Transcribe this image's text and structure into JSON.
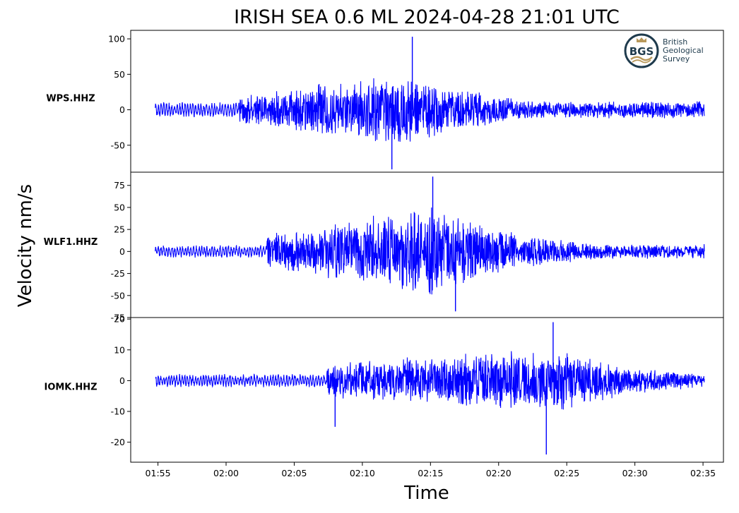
{
  "chart_data": {
    "type": "line",
    "title": "IRISH SEA 0.6 ML   2024-04-28 21:01 UTC",
    "xlabel": "Time",
    "ylabel": "Velocity nm/s",
    "x_ticks": [
      "01:55",
      "02:00",
      "02:05",
      "02:10",
      "02:15",
      "02:20",
      "02:25",
      "02:30",
      "02:35"
    ],
    "x_range_minutes": [
      -2.0,
      41.5
    ],
    "line_color": "#0000ff",
    "grid": false,
    "legend": "none",
    "logo": {
      "mark": "BGS",
      "name_lines": [
        "British",
        "Geological",
        "Survey"
      ]
    },
    "panels": [
      {
        "station": "WPS.HHZ",
        "ylim": [
          -88,
          112
        ],
        "yticks": [
          100,
          50,
          0,
          -50
        ],
        "ytick_labels": [
          "100",
          "50",
          "0",
          "-50"
        ],
        "background_amplitude": 9,
        "arrival_time": "02:01",
        "arrival_amplitude": 22,
        "peak_time": "02:13",
        "peak_amplitude": 55,
        "spikes": [
          {
            "time": "02:13:40",
            "value": 103
          },
          {
            "time": "02:12:10",
            "value": -84
          }
        ]
      },
      {
        "station": "WLF1.HHZ",
        "ylim": [
          -75,
          90
        ],
        "yticks": [
          75,
          50,
          25,
          0,
          -25,
          -50,
          -75
        ],
        "ytick_labels": [
          "75",
          "50",
          "25",
          "0",
          "-25",
          "-50",
          "-75"
        ],
        "background_amplitude": 6,
        "arrival_time": "02:03",
        "arrival_amplitude": 20,
        "peak_time": "02:15",
        "peak_amplitude": 55,
        "spikes": [
          {
            "time": "02:15:10",
            "value": 85
          },
          {
            "time": "02:16:50",
            "value": -68
          }
        ]
      },
      {
        "station": "IOMK.HHZ",
        "ylim": [
          -26.5,
          20.5
        ],
        "yticks": [
          20,
          10,
          0,
          -10,
          -20
        ],
        "ytick_labels": [
          "20",
          "10",
          "0",
          "-10",
          "-20"
        ],
        "background_amplitude": 1.8,
        "arrival_time": "02:07:20",
        "arrival_amplitude": 6,
        "peak_time": "02:24",
        "peak_amplitude": 11,
        "spikes": [
          {
            "time": "02:24:00",
            "value": 19
          },
          {
            "time": "02:23:30",
            "value": -24
          },
          {
            "time": "02:08:00",
            "value": -15
          }
        ]
      }
    ]
  }
}
